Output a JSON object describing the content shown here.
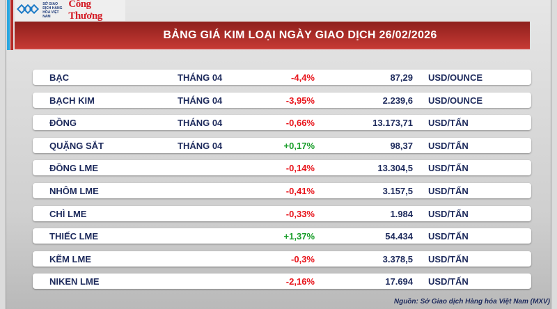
{
  "header": {
    "logo_left_text": "SỞ GIAO DỊCH HÀNG HÓA VIỆT NAM",
    "logo_right_text": "Công Thương",
    "title": "BẢNG GIÁ KIM LOẠI NGÀY GIAO DỊCH 26/02/2026"
  },
  "colors": {
    "negative": "#e8141b",
    "positive": "#1a9e2b",
    "title_bar": "#b52a28",
    "text": "#1d2a5c"
  },
  "rows": [
    {
      "name": "BẠC",
      "month": "THÁNG 04",
      "change": "-4,4%",
      "price": "87,29",
      "unit": "USD/OUNCE",
      "trend": "down"
    },
    {
      "name": "BẠCH KIM",
      "month": "THÁNG 04",
      "change": "-3,95%",
      "price": "2.239,6",
      "unit": "USD/OUNCE",
      "trend": "down"
    },
    {
      "name": "ĐỒNG",
      "month": "THÁNG 04",
      "change": "-0,66%",
      "price": "13.173,71",
      "unit": "USD/TẤN",
      "trend": "down"
    },
    {
      "name": "QUẶNG SẮT",
      "month": "THÁNG 04",
      "change": "+0,17%",
      "price": "98,37",
      "unit": "USD/TẤN",
      "trend": "up"
    },
    {
      "name": "ĐỒNG LME",
      "month": "",
      "change": "-0,14%",
      "price": "13.304,5",
      "unit": "USD/TẤN",
      "trend": "down"
    },
    {
      "name": "NHÔM LME",
      "month": "",
      "change": "-0,41%",
      "price": "3.157,5",
      "unit": "USD/TẤN",
      "trend": "down"
    },
    {
      "name": "CHÌ LME",
      "month": "",
      "change": "-0,33%",
      "price": "1.984",
      "unit": "USD/TẤN",
      "trend": "down"
    },
    {
      "name": "THIẾC LME",
      "month": "",
      "change": "+1,37%",
      "price": "54.434",
      "unit": "USD/TẤN",
      "trend": "up"
    },
    {
      "name": "KẼM LME",
      "month": "",
      "change": "-0,3%",
      "price": "3.378,5",
      "unit": "USD/TẤN",
      "trend": "down"
    },
    {
      "name": "NIKEN LME",
      "month": "",
      "change": "-2,16%",
      "price": "17.694",
      "unit": "USD/TẤN",
      "trend": "down"
    }
  ],
  "footer": {
    "source": "Nguồn: Sở Giao dịch Hàng hóa Việt Nam (MXV)"
  }
}
